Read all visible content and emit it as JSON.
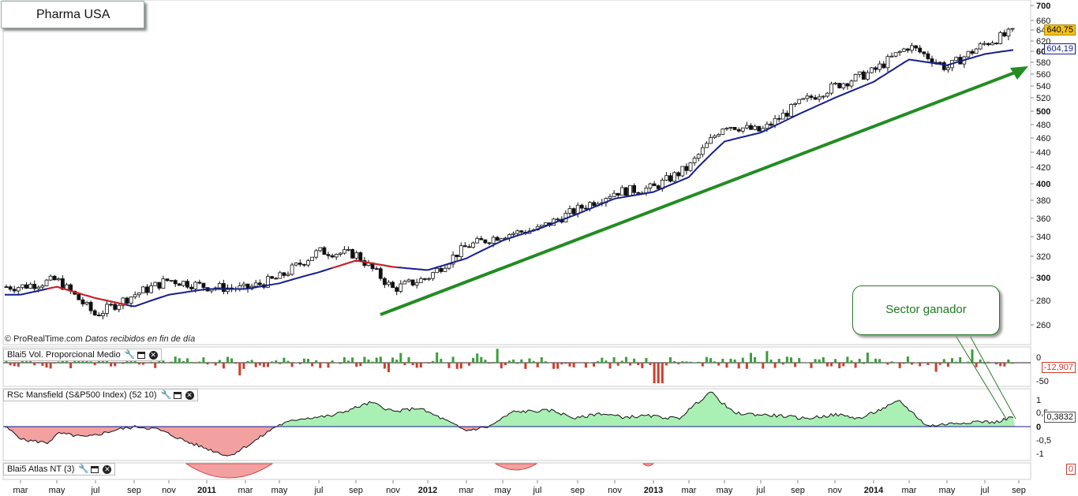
{
  "title": "Pharma USA",
  "copyright": {
    "site": "© ProRealTime.com",
    "note": "Datos recibidos en fin de día"
  },
  "callout": "Sector ganador",
  "colors": {
    "up_trend": "#d42020",
    "ma": "#141e8c",
    "arrow": "#238c23",
    "positive": "#3a9e3a",
    "negative": "#d43b2a",
    "green_fill": "#aaf0b4",
    "red_fill": "#f2a0a0"
  },
  "price_axis": {
    "ticks": [
      700,
      660,
      640,
      620,
      600,
      580,
      560,
      540,
      520,
      500,
      480,
      460,
      440,
      420,
      400,
      380,
      360,
      340,
      320,
      300,
      280,
      260
    ]
  },
  "x_axis": {
    "labels": [
      "mar",
      "may",
      "jul",
      "sep",
      "nov",
      "2011",
      "mar",
      "may",
      "jul",
      "sep",
      "nov",
      "2012",
      "mar",
      "may",
      "jul",
      "sep",
      "nov",
      "2013",
      "mar",
      "may",
      "jul",
      "sep",
      "nov",
      "2014",
      "mar",
      "may",
      "jul",
      "sep"
    ]
  },
  "badges": {
    "last_price": "640,75",
    "ma_value": "604,19",
    "vol_value": "-12,907",
    "rsc_value": "0,3832",
    "atlas_value": "0"
  },
  "panels": {
    "vol": {
      "name": "Blai5 Vol. Proporcional Medio",
      "ticks": [
        "0",
        "-50"
      ]
    },
    "rsc": {
      "name": "RSc Mansfield (S&P500 Index) (52 10)",
      "ticks": [
        "1",
        "0,5",
        "0",
        "-0,5",
        "-1"
      ]
    },
    "atlas": {
      "name": "Blai5 Atlas NT (3)"
    }
  },
  "chart_data": {
    "type": "line",
    "title": "Pharma USA",
    "x": [
      "2010-03",
      "2010-05",
      "2010-07",
      "2010-09",
      "2010-11",
      "2011-01",
      "2011-03",
      "2011-05",
      "2011-07",
      "2011-09",
      "2011-11",
      "2012-01",
      "2012-03",
      "2012-05",
      "2012-07",
      "2012-09",
      "2012-11",
      "2013-01",
      "2013-03",
      "2013-05",
      "2013-07",
      "2013-09",
      "2013-11",
      "2014-01",
      "2014-03",
      "2014-05",
      "2014-07",
      "2014-08"
    ],
    "series": [
      {
        "values": [
          292,
          298,
          268,
          285,
          298,
          292,
          290,
          300,
          325,
          322,
          290,
          300,
          330,
          342,
          348,
          370,
          390,
          395,
          420,
          480,
          470,
          510,
          540,
          565,
          610,
          570,
          615,
          640
        ]
      },
      {
        "values": [
          285,
          292,
          282,
          275,
          285,
          290,
          290,
          295,
          305,
          316,
          310,
          307,
          318,
          336,
          348,
          365,
          382,
          390,
          408,
          455,
          468,
          495,
          520,
          547,
          585,
          575,
          595,
          604
        ]
      }
    ],
    "ylim": [
      250,
      700
    ]
  }
}
